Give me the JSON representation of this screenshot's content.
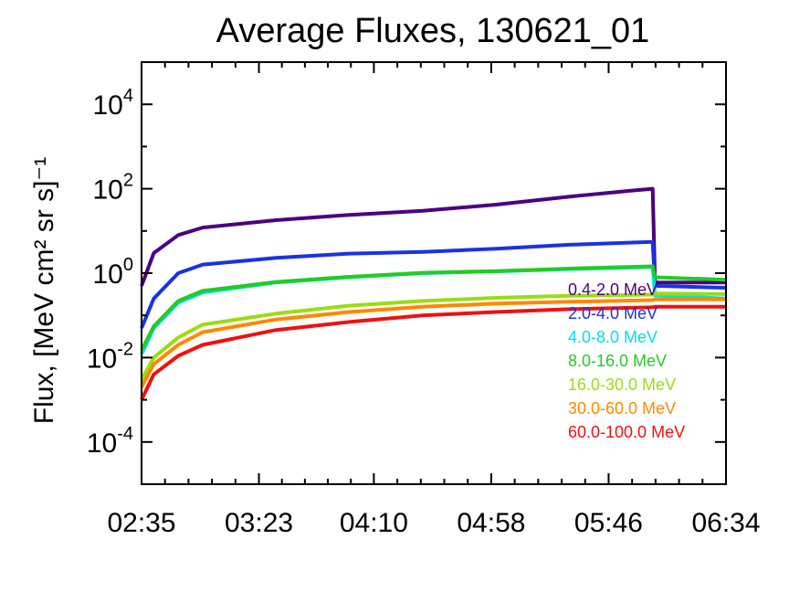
{
  "chart_data": {
    "type": "line",
    "title": "Average Fluxes, 130621_01",
    "xlabel": "",
    "ylabel": "Flux, [MeV cm² sr s]⁻¹",
    "y_scale": "log",
    "ylim": [
      1e-05,
      100000
    ],
    "xlim": [
      "02:35",
      "06:34"
    ],
    "x_ticks": [
      "02:35",
      "03:23",
      "04:10",
      "04:58",
      "05:46",
      "06:34"
    ],
    "y_ticks": [
      {
        "value": 0.0001,
        "base": "10",
        "exp": "-4"
      },
      {
        "value": 0.01,
        "base": "10",
        "exp": "-2"
      },
      {
        "value": 1,
        "base": "10",
        "exp": "0"
      },
      {
        "value": 100,
        "base": "10",
        "exp": "2"
      },
      {
        "value": 10000,
        "base": "10",
        "exp": "4"
      }
    ],
    "grid": false,
    "legend_position": "bottom-right",
    "series": [
      {
        "name": "0.4-2.0 MeV",
        "color": "#4b0082",
        "points": [
          [
            "02:35",
            0.5
          ],
          [
            "02:40",
            3
          ],
          [
            "02:50",
            8
          ],
          [
            "03:00",
            12
          ],
          [
            "03:30",
            18
          ],
          [
            "04:00",
            24
          ],
          [
            "04:30",
            30
          ],
          [
            "05:00",
            42
          ],
          [
            "05:30",
            65
          ],
          [
            "05:55",
            90
          ],
          [
            "06:04",
            100
          ],
          [
            "06:05",
            0.6
          ],
          [
            "06:34",
            0.6
          ]
        ]
      },
      {
        "name": "2.0-4.0 MeV",
        "color": "#1a33e0",
        "points": [
          [
            "02:35",
            0.05
          ],
          [
            "02:40",
            0.25
          ],
          [
            "02:50",
            1.0
          ],
          [
            "03:00",
            1.6
          ],
          [
            "03:30",
            2.3
          ],
          [
            "04:00",
            2.9
          ],
          [
            "04:30",
            3.2
          ],
          [
            "05:00",
            3.8
          ],
          [
            "05:30",
            4.7
          ],
          [
            "06:04",
            5.5
          ],
          [
            "06:05",
            0.5
          ],
          [
            "06:34",
            0.45
          ]
        ]
      },
      {
        "name": "4.0-8.0 MeV",
        "color": "#00e0e8",
        "points": [
          [
            "02:35",
            0.012
          ],
          [
            "02:40",
            0.05
          ],
          [
            "02:50",
            0.2
          ],
          [
            "03:00",
            0.35
          ],
          [
            "03:30",
            0.6
          ],
          [
            "04:00",
            0.8
          ],
          [
            "04:30",
            1.0
          ],
          [
            "05:00",
            1.1
          ],
          [
            "05:30",
            1.25
          ],
          [
            "06:04",
            1.4
          ],
          [
            "06:05",
            0.3
          ],
          [
            "06:34",
            0.25
          ]
        ]
      },
      {
        "name": "8.0-16.0 MeV",
        "color": "#22cc22",
        "points": [
          [
            "02:35",
            0.015
          ],
          [
            "02:40",
            0.055
          ],
          [
            "02:50",
            0.22
          ],
          [
            "03:00",
            0.38
          ],
          [
            "03:30",
            0.62
          ],
          [
            "04:00",
            0.82
          ],
          [
            "04:30",
            1.02
          ],
          [
            "05:00",
            1.12
          ],
          [
            "05:30",
            1.28
          ],
          [
            "06:04",
            1.45
          ],
          [
            "06:05",
            0.8
          ],
          [
            "06:34",
            0.7
          ]
        ]
      },
      {
        "name": "16.0-30.0 MeV",
        "color": "#99dd11",
        "points": [
          [
            "02:35",
            0.003
          ],
          [
            "02:40",
            0.01
          ],
          [
            "02:50",
            0.03
          ],
          [
            "03:00",
            0.06
          ],
          [
            "03:30",
            0.11
          ],
          [
            "04:00",
            0.17
          ],
          [
            "04:30",
            0.22
          ],
          [
            "05:00",
            0.26
          ],
          [
            "05:30",
            0.29
          ],
          [
            "06:04",
            0.31
          ],
          [
            "06:05",
            0.33
          ],
          [
            "06:34",
            0.32
          ]
        ]
      },
      {
        "name": "30.0-60.0 MeV",
        "color": "#ff8800",
        "points": [
          [
            "02:35",
            0.002
          ],
          [
            "02:40",
            0.007
          ],
          [
            "02:50",
            0.02
          ],
          [
            "03:00",
            0.04
          ],
          [
            "03:30",
            0.08
          ],
          [
            "04:00",
            0.12
          ],
          [
            "04:30",
            0.16
          ],
          [
            "05:00",
            0.19
          ],
          [
            "05:30",
            0.21
          ],
          [
            "06:04",
            0.23
          ],
          [
            "06:05",
            0.24
          ],
          [
            "06:34",
            0.24
          ]
        ]
      },
      {
        "name": "60.0-100.0 MeV",
        "color": "#ee1111",
        "points": [
          [
            "02:35",
            0.001
          ],
          [
            "02:40",
            0.004
          ],
          [
            "02:50",
            0.011
          ],
          [
            "03:00",
            0.02
          ],
          [
            "03:30",
            0.045
          ],
          [
            "04:00",
            0.07
          ],
          [
            "04:30",
            0.1
          ],
          [
            "05:00",
            0.12
          ],
          [
            "05:30",
            0.14
          ],
          [
            "06:04",
            0.155
          ],
          [
            "06:05",
            0.16
          ],
          [
            "06:34",
            0.16
          ]
        ]
      }
    ]
  }
}
